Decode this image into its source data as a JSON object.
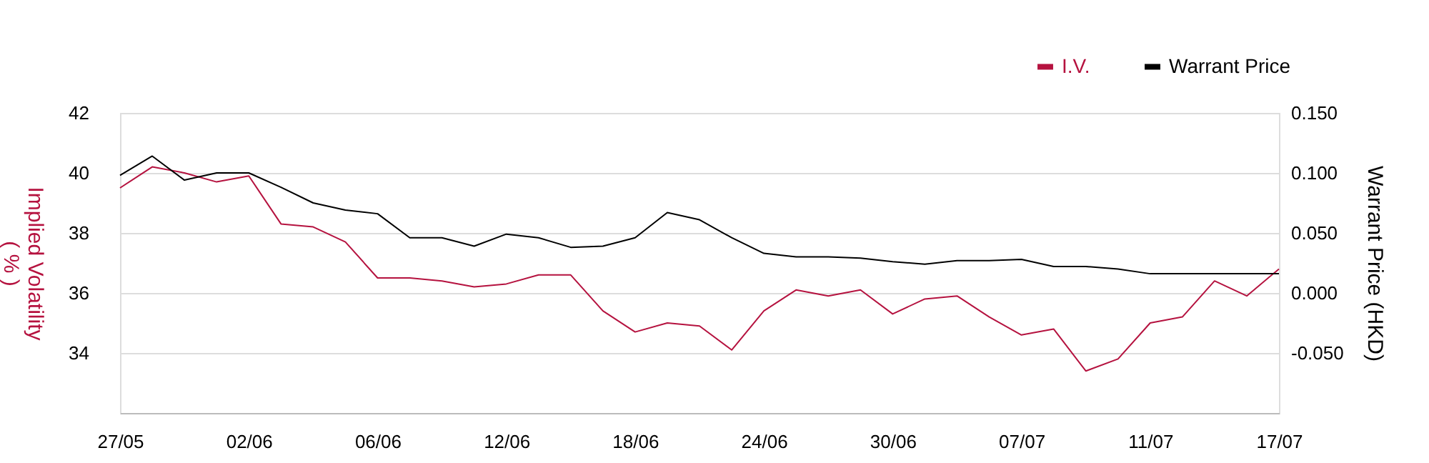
{
  "chart_data": {
    "type": "line",
    "ylabel": "Implied Volatility\n( % )",
    "y2label": "Warrant Price (HKD)",
    "categories": [
      "27/05",
      null,
      null,
      null,
      "02/06",
      null,
      null,
      null,
      "06/06",
      null,
      null,
      null,
      "12/06",
      null,
      null,
      null,
      "18/06",
      null,
      null,
      null,
      "24/06",
      null,
      null,
      null,
      "30/06",
      null,
      null,
      null,
      "07/07",
      null,
      null,
      null,
      "11/07",
      null,
      null,
      null,
      "17/07"
    ],
    "ylim": [
      32,
      42
    ],
    "yticks": [
      34,
      36,
      38,
      40,
      42
    ],
    "y2lim": [
      -0.1,
      0.15
    ],
    "y2ticks": [
      {
        "value": -0.05,
        "label": "-0.050"
      },
      {
        "value": 0,
        "label": "0.000"
      },
      {
        "value": 0.05,
        "label": "0.050"
      },
      {
        "value": 0.1,
        "label": "0.100"
      },
      {
        "value": 0.15,
        "label": "0.150"
      }
    ],
    "grid": "y",
    "legend": "top right",
    "line_style": "solid",
    "marker": "none",
    "series": [
      {
        "name": "I.V.",
        "color": "#b5123f",
        "values": [
          39.5,
          40.2,
          40.0,
          39.7,
          39.9,
          38.3,
          38.2,
          37.7,
          36.5,
          36.5,
          36.4,
          36.2,
          36.3,
          36.6,
          36.6,
          35.4,
          34.7,
          35.0,
          34.9,
          34.1,
          35.4,
          36.1,
          35.9,
          36.1,
          35.3,
          35.8,
          35.9,
          35.2,
          34.6,
          34.8,
          33.4,
          33.8,
          35.0,
          35.2,
          36.4,
          35.9,
          36.8
        ]
      },
      {
        "name": "Warrant Price",
        "color": "#000000",
        "axis": "y2",
        "values": [
          0.098,
          0.114,
          0.094,
          0.1,
          0.1,
          0.088,
          0.075,
          0.069,
          0.066,
          0.046,
          0.046,
          0.039,
          0.049,
          0.046,
          0.038,
          0.039,
          0.046,
          0.067,
          0.061,
          0.046,
          0.033,
          0.03,
          0.03,
          0.029,
          0.026,
          0.024,
          0.027,
          0.027,
          0.028,
          0.022,
          0.022,
          0.02,
          0.016,
          0.016,
          0.016,
          0.016,
          0.016
        ]
      }
    ]
  }
}
